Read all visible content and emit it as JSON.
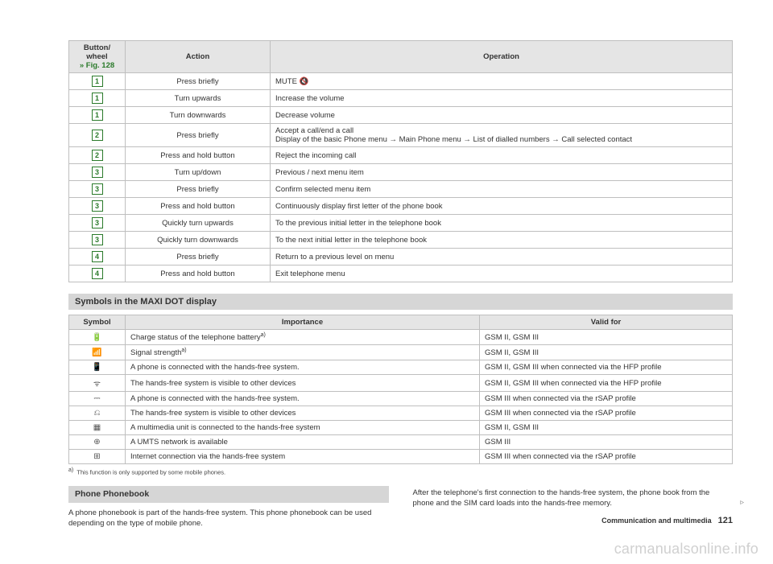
{
  "table1": {
    "headers": {
      "btn": "Button/\nwheel",
      "fig": "» Fig. 128",
      "action": "Action",
      "op": "Operation"
    },
    "rows": [
      {
        "num": "1",
        "action": "Press briefly",
        "op": "MUTE 🔇"
      },
      {
        "num": "1",
        "action": "Turn upwards",
        "op": "Increase the volume"
      },
      {
        "num": "1",
        "action": "Turn downwards",
        "op": "Decrease volume"
      },
      {
        "num": "2",
        "action": "Press briefly",
        "op": "Accept a call/end a call\nDisplay of the basic Phone menu → Main Phone menu → List of dialled numbers → Call selected contact"
      },
      {
        "num": "2",
        "action": "Press and hold button",
        "op": "Reject the incoming call"
      },
      {
        "num": "3",
        "action": "Turn up/down",
        "op": "Previous / next menu item"
      },
      {
        "num": "3",
        "action": "Press briefly",
        "op": "Confirm selected menu item"
      },
      {
        "num": "3",
        "action": "Press and hold button",
        "op": "Continuously display first letter of the phone book"
      },
      {
        "num": "3",
        "action": "Quickly turn upwards",
        "op": "To the previous initial letter in the telephone book"
      },
      {
        "num": "3",
        "action": "Quickly turn downwards",
        "op": "To the next initial letter in the telephone book"
      },
      {
        "num": "4",
        "action": "Press briefly",
        "op": "Return to a previous level on menu"
      },
      {
        "num": "4",
        "action": "Press and hold button",
        "op": "Exit telephone menu"
      }
    ]
  },
  "symbolsHeader": "Symbols in the MAXI DOT display",
  "table2": {
    "headers": {
      "sym": "Symbol",
      "imp": "Importance",
      "valid": "Valid for"
    },
    "rows": [
      {
        "sym": "🔋",
        "imp": "Charge status of the telephone battery",
        "sup": "a)",
        "valid": "GSM II, GSM III"
      },
      {
        "sym": "📶",
        "imp": "Signal strength",
        "sup": "a)",
        "valid": "GSM II, GSM III"
      },
      {
        "sym": "📱",
        "imp": "A phone is connected with the hands-free system.",
        "sup": "",
        "valid": "GSM II, GSM III when connected via the HFP profile"
      },
      {
        "sym": "ᯤ",
        "imp": "The hands-free system is visible to other devices",
        "sup": "",
        "valid": "GSM II, GSM III when connected via the HFP profile"
      },
      {
        "sym": "⎓",
        "imp": "A phone is connected with the hands-free system.",
        "sup": "",
        "valid": "GSM III when connected via the rSAP profile"
      },
      {
        "sym": "⎌",
        "imp": "The hands-free system is visible to other devices",
        "sup": "",
        "valid": "GSM III when connected via the rSAP profile"
      },
      {
        "sym": "▦",
        "imp": "A multimedia unit is connected to the hands-free system",
        "sup": "",
        "valid": "GSM II, GSM III"
      },
      {
        "sym": "⊕",
        "imp": "A UMTS network is available",
        "sup": "",
        "valid": "GSM III"
      },
      {
        "sym": "⊞",
        "imp": "Internet connection via the hands-free system",
        "sup": "",
        "valid": "GSM III when connected via the rSAP profile"
      }
    ]
  },
  "footnote": {
    "marker": "a)",
    "text": "This function is only supported by some mobile phones."
  },
  "phonebook": {
    "header": "Phone Phonebook",
    "col1": "A phone phonebook is part of the hands-free system. This phone phonebook can be used depending on the type of mobile phone.",
    "col2": "After the telephone's first connection to the hands-free system, the phone book from the phone and the SIM card loads into the hands-free memory."
  },
  "footerText": "Communication and multimedia",
  "pageNum": "121",
  "watermark": "carmanualsonline.info",
  "continueGlyph": "▹"
}
